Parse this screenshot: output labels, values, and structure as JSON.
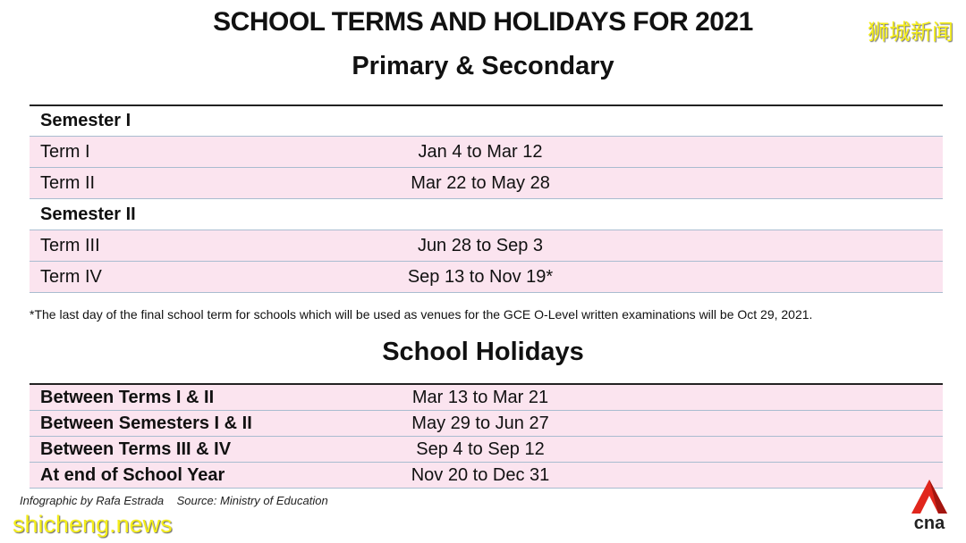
{
  "title": "SCHOOL TERMS AND HOLIDAYS FOR 2021",
  "subtitle": "Primary & Secondary",
  "watermark_cn": "狮城新闻",
  "watermark_en": "shicheng.news",
  "terms": {
    "semesters": [
      {
        "label": "Semester I",
        "terms": [
          {
            "label": "Term I",
            "dates": "Jan 4 to Mar 12"
          },
          {
            "label": "Term II",
            "dates": "Mar 22 to May 28"
          }
        ]
      },
      {
        "label": "Semester II",
        "terms": [
          {
            "label": "Term III",
            "dates": "Jun 28  to Sep 3"
          },
          {
            "label": "Term IV",
            "dates": "Sep 13 to Nov 19*"
          }
        ]
      }
    ],
    "footnote": "*The last day of the final school term for schools which will be used as venues for the GCE O-Level written examinations will be Oct 29, 2021."
  },
  "holidays": {
    "heading": "School Holidays",
    "rows": [
      {
        "label": "Between Terms I & II",
        "dates": "Mar 13 to Mar 21"
      },
      {
        "label": "Between Semesters I & II",
        "dates": "May 29 to Jun 27"
      },
      {
        "label": "Between Terms III & IV",
        "dates": "Sep 4 to Sep 12"
      },
      {
        "label": "At end of School Year",
        "dates": "Nov 20 to Dec 31"
      }
    ]
  },
  "credit": "Infographic by Rafa Estrada    Source: Ministry of Education",
  "logo": {
    "text": "cna",
    "color": "#e1261c"
  },
  "colors": {
    "row_bg": "#fbe4ef",
    "row_border": "#a9bcd0"
  }
}
